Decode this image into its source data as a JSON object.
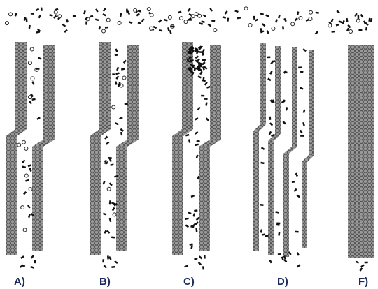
{
  "panels": [
    {
      "label": "A)"
    },
    {
      "label": "B)"
    },
    {
      "label": "C)"
    },
    {
      "label": "D)"
    },
    {
      "label": "F)"
    }
  ]
}
